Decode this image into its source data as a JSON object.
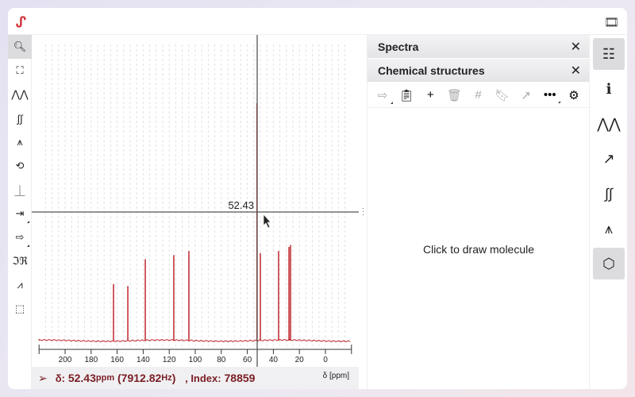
{
  "app": {
    "logo": "ᔑ",
    "film_icon": "film-icon"
  },
  "left_toolbar": [
    {
      "name": "zoom-tool",
      "glyph": "🔍︎",
      "active": true
    },
    {
      "name": "full-spectrum-tool",
      "glyph": "⛶"
    },
    {
      "name": "peak-picking-tool",
      "glyph": "⋀⋀"
    },
    {
      "name": "integral-tool",
      "glyph": "∫∫"
    },
    {
      "name": "multiplet-analysis-tool",
      "glyph": "⩚"
    },
    {
      "name": "phase-correction-tool",
      "glyph": "⟲"
    },
    {
      "name": "baseline-correction-tool",
      "glyph": "⏊"
    },
    {
      "name": "import-tool",
      "glyph": "⇥",
      "sub": true
    },
    {
      "name": "export-tool",
      "glyph": "⇨",
      "sub": true
    },
    {
      "name": "real-imaginary-tool",
      "glyph": "ℑℜ"
    },
    {
      "name": "exclusion-zone-tool",
      "glyph": "⩘"
    },
    {
      "name": "selection-tool",
      "glyph": "⬚"
    }
  ],
  "chart_data": {
    "type": "line",
    "xlabel": "δ [ppm]",
    "xlim": [
      220,
      -20
    ],
    "x_ticks": [
      200,
      180,
      160,
      140,
      120,
      100,
      80,
      60,
      40,
      20,
      0
    ],
    "x_reversed": true,
    "grid": "vertical dashed",
    "color": "#c0262d",
    "peaks": [
      {
        "ppm": 162.8,
        "intensity": 10.7
      },
      {
        "ppm": 151.8,
        "intensity": 9.7
      },
      {
        "ppm": 138.4,
        "intensity": 23
      },
      {
        "ppm": 116.5,
        "intensity": 25
      },
      {
        "ppm": 104.9,
        "intensity": 27
      },
      {
        "ppm": 52.6,
        "intensity": 100
      },
      {
        "ppm": 50.0,
        "intensity": 26
      },
      {
        "ppm": 36.0,
        "intensity": 27
      },
      {
        "ppm": 28.0,
        "intensity": 29
      },
      {
        "ppm": 26.8,
        "intensity": 30
      }
    ],
    "crosshair": {
      "ppm": 52.43,
      "label": "52.43"
    }
  },
  "status": {
    "delta_label": "δ:",
    "ppm": "52.43",
    "ppm_unit": "ppm",
    "hz": "(7912.82",
    "hz_unit": "Hz",
    "hz_close": ")",
    "index_label": ", Index:",
    "index": "78859",
    "axis_label": "δ [ppm]"
  },
  "panel": {
    "spectra_title": "Spectra",
    "structures_title": "Chemical structures",
    "tools": [
      {
        "name": "export-structure-button",
        "glyph": "⇨",
        "dim": true,
        "sub": true
      },
      {
        "name": "paste-button",
        "glyph": "📋︎"
      },
      {
        "name": "add-button",
        "glyph": "+"
      },
      {
        "name": "delete-button",
        "glyph": "🗑︎",
        "dim": true
      },
      {
        "name": "numbering-button",
        "glyph": "#",
        "dim": true
      },
      {
        "name": "bookmark-button",
        "glyph": "🔖︎",
        "dim": true
      },
      {
        "name": "open-external-button",
        "glyph": "↗",
        "dim": true
      },
      {
        "name": "more-button",
        "glyph": "•••",
        "sub": true
      },
      {
        "name": "settings-button",
        "glyph": "⚙"
      }
    ],
    "placeholder": "Click to draw molecule"
  },
  "right_sidebar": [
    {
      "name": "spectra-panel-button",
      "glyph": "☷",
      "active": true
    },
    {
      "name": "information-button",
      "glyph": "ℹ"
    },
    {
      "name": "peaks-panel-button",
      "glyph": "⋀⋀"
    },
    {
      "name": "filters-panel-button",
      "glyph": "↗"
    },
    {
      "name": "integrals-panel-button",
      "glyph": "∫∫"
    },
    {
      "name": "multiplets-panel-button",
      "glyph": "⩚"
    },
    {
      "name": "structures-panel-button",
      "glyph": "⬡",
      "active": true
    }
  ]
}
